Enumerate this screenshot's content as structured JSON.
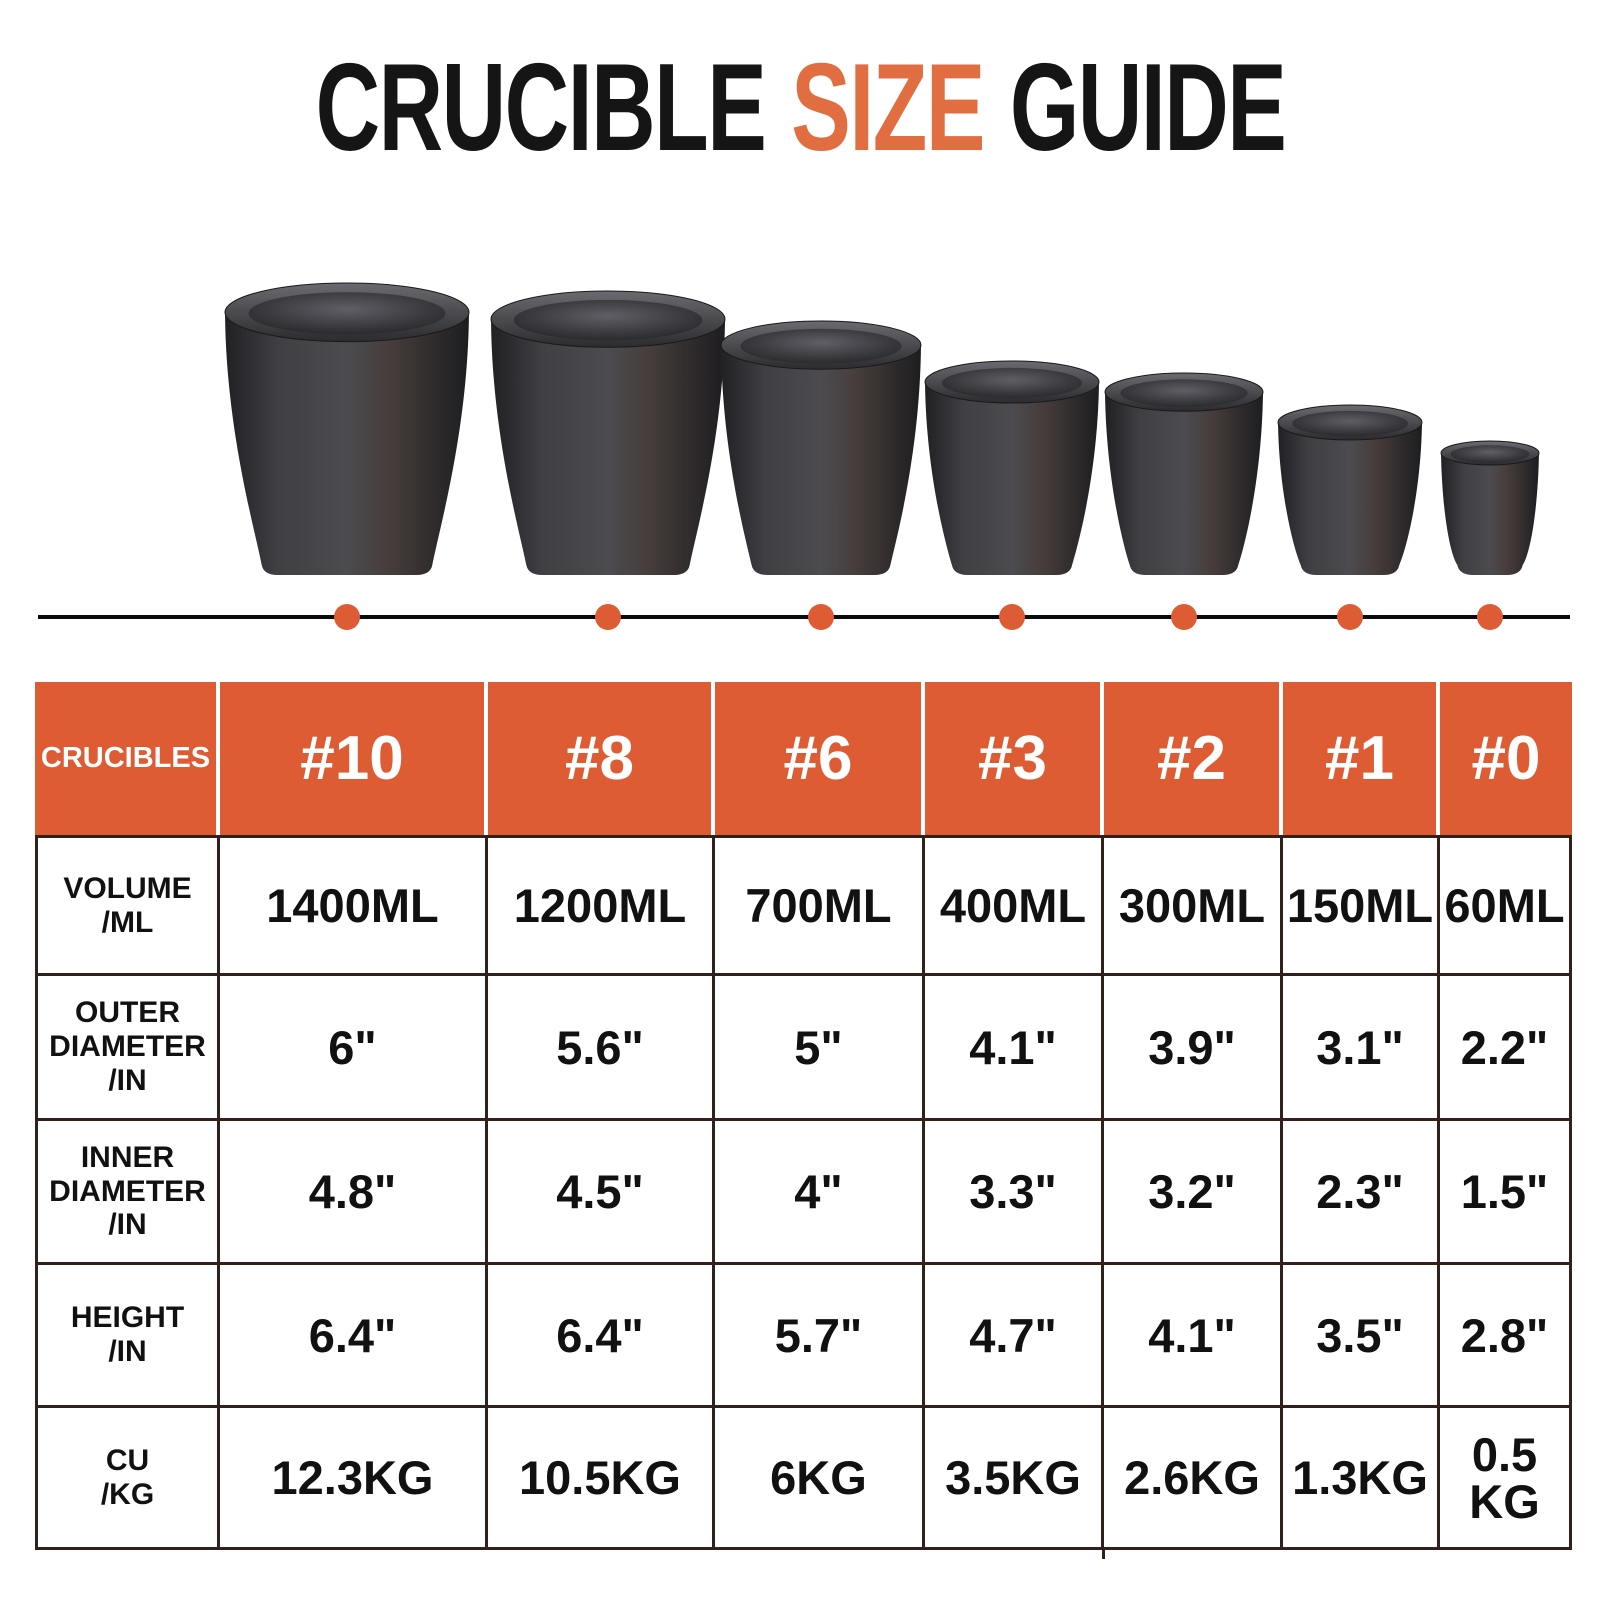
{
  "title": {
    "word1": "CRUCIBLE",
    "word2": "SIZE",
    "word3": "GUIDE"
  },
  "colors": {
    "accent": "#DE5C34",
    "title_accent": "#E06E41",
    "table_border": "#30211A",
    "title_text": "#151515",
    "value_text": "#111111",
    "header_text": "#FFFFFF",
    "axis_line": "#0B0B0B"
  },
  "table": {
    "corner_label": "CRUCIBLES",
    "row_labels": [
      "VOLUME\n/ML",
      "OUTER\nDIAMETER\n/IN",
      "INNER\nDIAMETER\n/IN",
      "HEIGHT\n/IN",
      "CU\n/KG"
    ]
  },
  "crucibles": [
    {
      "label": "#10",
      "volume": "1400ML",
      "outer_diameter": "6\"",
      "inner_diameter": "4.8\"",
      "height_in": "6.4\"",
      "cu": "12.3KG"
    },
    {
      "label": "#8",
      "volume": "1200ML",
      "outer_diameter": "5.6\"",
      "inner_diameter": "4.5\"",
      "height_in": "6.4\"",
      "cu": "10.5KG"
    },
    {
      "label": "#6",
      "volume": "700ML",
      "outer_diameter": "5\"",
      "inner_diameter": "4\"",
      "height_in": "5.7\"",
      "cu": "6KG"
    },
    {
      "label": "#3",
      "volume": "400ML",
      "outer_diameter": "4.1\"",
      "inner_diameter": "3.3\"",
      "height_in": "4.7\"",
      "cu": "3.5KG"
    },
    {
      "label": "#2",
      "volume": "300ML",
      "outer_diameter": "3.9\"",
      "inner_diameter": "3.2\"",
      "height_in": "4.1\"",
      "cu": "2.6KG"
    },
    {
      "label": "#1",
      "volume": "150ML",
      "outer_diameter": "3.1\"",
      "inner_diameter": "2.3\"",
      "height_in": "3.5\"",
      "cu": "1.3KG"
    },
    {
      "label": "#0",
      "volume": "60ML",
      "outer_diameter": "2.2\"",
      "inner_diameter": "1.5\"",
      "height_in": "2.8\"",
      "cu": "0.5\nKG"
    }
  ],
  "chart_data": {
    "type": "table",
    "title": "CRUCIBLE SIZE GUIDE",
    "columns": [
      "CRUCIBLES",
      "#10",
      "#8",
      "#6",
      "#3",
      "#2",
      "#1",
      "#0"
    ],
    "rows": [
      [
        "VOLUME /ML",
        "1400ML",
        "1200ML",
        "700ML",
        "400ML",
        "300ML",
        "150ML",
        "60ML"
      ],
      [
        "OUTER DIAMETER /IN",
        "6\"",
        "5.6\"",
        "5\"",
        "4.1\"",
        "3.9\"",
        "3.1\"",
        "2.2\""
      ],
      [
        "INNER DIAMETER /IN",
        "4.8\"",
        "4.5\"",
        "4\"",
        "3.3\"",
        "3.2\"",
        "2.3\"",
        "1.5\""
      ],
      [
        "HEIGHT /IN",
        "6.4\"",
        "6.4\"",
        "5.7\"",
        "4.7\"",
        "4.1\"",
        "3.5\"",
        "2.8\""
      ],
      [
        "CU /KG",
        "12.3KG",
        "10.5KG",
        "6KG",
        "3.5KG",
        "2.6KG",
        "1.3KG",
        "0.5 KG"
      ]
    ]
  }
}
